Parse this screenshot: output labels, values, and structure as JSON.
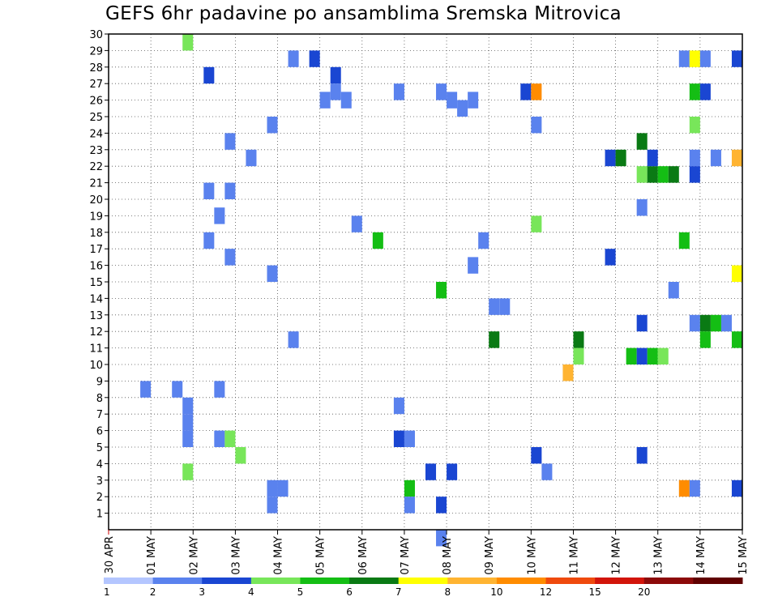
{
  "chart_data": {
    "type": "heatmap",
    "title": "GEFS 6hr padavine po ansamblima Sremska Mitrovica",
    "y_ticks": [
      "1",
      "2",
      "3",
      "4",
      "5",
      "6",
      "7",
      "8",
      "9",
      "10",
      "11",
      "12",
      "13",
      "14",
      "15",
      "16",
      "17",
      "18",
      "19",
      "20",
      "21",
      "22",
      "23",
      "24",
      "25",
      "26",
      "27",
      "28",
      "29",
      "30"
    ],
    "y_range": [
      0,
      30
    ],
    "x_ticks": [
      "30 APR",
      "01 MAY",
      "02 MAY",
      "03 MAY",
      "04 MAY",
      "05 MAY",
      "06 MAY",
      "07 MAY",
      "08 MAY",
      "09 MAY",
      "10 MAY",
      "11 MAY",
      "12 MAY",
      "13 MAY",
      "14 MAY",
      "15 MAY"
    ],
    "x_range": [
      0,
      60
    ],
    "x_step": "6hr",
    "grid": true,
    "legend_position": "bottom",
    "legend": {
      "labels": [
        "1",
        "2",
        "3",
        "4",
        "5",
        "6",
        "7",
        "8",
        "10",
        "12",
        "15",
        "20"
      ],
      "colors": [
        "#b4c6ff",
        "#5a82ee",
        "#1a46d2",
        "#78e65a",
        "#14be14",
        "#0a7a14",
        "#ffff00",
        "#ffb432",
        "#ff8c00",
        "#ef4a0e",
        "#d2140a",
        "#8c0a0a",
        "#600000"
      ]
    },
    "cells": [
      [
        3.5,
        29.5,
        3
      ],
      [
        8.5,
        28.5,
        1
      ],
      [
        9.5,
        28.5,
        2
      ],
      [
        4.5,
        27.5,
        2
      ],
      [
        10.5,
        27.5,
        2
      ],
      [
        10.5,
        26.5,
        1
      ],
      [
        13.5,
        26.5,
        1
      ],
      [
        15.5,
        26.5,
        1
      ],
      [
        10,
        26,
        1
      ],
      [
        11,
        26,
        1
      ],
      [
        7.5,
        24.5,
        1
      ],
      [
        16.5,
        25.5,
        1
      ],
      [
        16,
        26,
        1
      ],
      [
        17,
        26,
        1
      ],
      [
        5.5,
        23.5,
        1
      ],
      [
        6.5,
        22.5,
        1
      ],
      [
        4.5,
        20.5,
        1
      ],
      [
        5.5,
        20.5,
        1
      ],
      [
        5,
        19,
        1
      ],
      [
        11.5,
        18.5,
        1
      ],
      [
        4.5,
        17.5,
        1
      ],
      [
        12.5,
        17.5,
        4
      ],
      [
        5.5,
        16.5,
        1
      ],
      [
        17,
        16,
        1
      ],
      [
        7.5,
        15.5,
        1
      ],
      [
        15.5,
        14.5,
        4
      ],
      [
        1.5,
        8.5,
        1
      ],
      [
        3,
        8.5,
        1
      ],
      [
        5,
        8.5,
        1
      ],
      [
        3.5,
        6.5,
        1
      ],
      [
        3.5,
        7.5,
        1
      ],
      [
        3.5,
        5.5,
        1
      ],
      [
        5,
        5.5,
        1
      ],
      [
        5.5,
        5.5,
        3
      ],
      [
        6,
        4.5,
        3
      ],
      [
        3.5,
        3.5,
        3
      ],
      [
        7.5,
        2.5,
        1
      ],
      [
        8,
        2.5,
        1
      ],
      [
        7.5,
        1.5,
        1
      ],
      [
        14,
        2.5,
        4
      ],
      [
        14,
        1.5,
        1
      ],
      [
        15.5,
        1.5,
        2
      ],
      [
        15,
        3.5,
        2
      ],
      [
        16,
        3.5,
        2
      ],
      [
        15.5,
        -0.5,
        1
      ],
      [
        13.5,
        7.5,
        1
      ],
      [
        13.5,
        5.5,
        2
      ],
      [
        14,
        5.5,
        1
      ],
      [
        18,
        13.5,
        1
      ],
      [
        18.5,
        13.5,
        1
      ],
      [
        18,
        11.5,
        5
      ],
      [
        21.5,
        9.5,
        7
      ],
      [
        22,
        10.5,
        3
      ],
      [
        22,
        11.5,
        5
      ],
      [
        20,
        4.5,
        2
      ],
      [
        20.5,
        3.5,
        1
      ],
      [
        8.5,
        11.5,
        1
      ],
      [
        20,
        18.5,
        3
      ],
      [
        17.5,
        17.5,
        1
      ],
      [
        23.5,
        16.5,
        2
      ],
      [
        25,
        19.5,
        1
      ],
      [
        19.5,
        26.5,
        2
      ],
      [
        20,
        26.5,
        8
      ],
      [
        20,
        24.5,
        1
      ],
      [
        23.5,
        22.5,
        2
      ],
      [
        24,
        22.5,
        5
      ],
      [
        25,
        21.5,
        3
      ],
      [
        25.5,
        21.5,
        5
      ],
      [
        26,
        21.5,
        4
      ],
      [
        26.5,
        21.5,
        5
      ],
      [
        25.5,
        22.5,
        2
      ],
      [
        25,
        23.5,
        5
      ],
      [
        25,
        12.5,
        2
      ],
      [
        24.5,
        10.5,
        4
      ],
      [
        25,
        10.5,
        2
      ],
      [
        25.5,
        10.5,
        4
      ],
      [
        26,
        10.5,
        3
      ],
      [
        25,
        4.5,
        2
      ],
      [
        27,
        28.5,
        1
      ],
      [
        27.5,
        28.5,
        6
      ],
      [
        28,
        28.5,
        1
      ],
      [
        29.5,
        28.5,
        2
      ],
      [
        27.5,
        26.5,
        4
      ],
      [
        28,
        26.5,
        2
      ],
      [
        27.5,
        24.5,
        3
      ],
      [
        27.5,
        22.5,
        1
      ],
      [
        28.5,
        22.5,
        1
      ],
      [
        29.5,
        22.5,
        7
      ],
      [
        27.5,
        21.5,
        2
      ],
      [
        27,
        17.5,
        4
      ],
      [
        29.5,
        15.5,
        6
      ],
      [
        26.5,
        14.5,
        1
      ],
      [
        27.5,
        12.5,
        1
      ],
      [
        28,
        12.5,
        5
      ],
      [
        28.5,
        12.5,
        4
      ],
      [
        29,
        12.5,
        1
      ],
      [
        28,
        11.5,
        4
      ],
      [
        29.5,
        11.5,
        4
      ],
      [
        27,
        2.5,
        8
      ],
      [
        27.5,
        2.5,
        1
      ],
      [
        29.5,
        2.5,
        2
      ]
    ]
  }
}
